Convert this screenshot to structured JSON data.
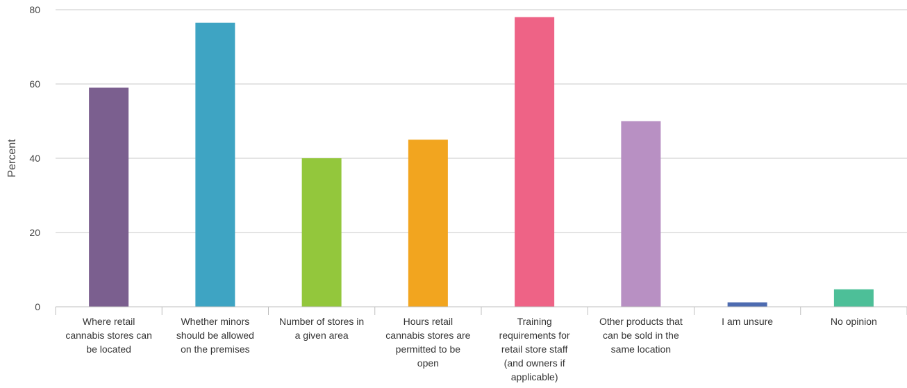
{
  "chart_data": {
    "type": "bar",
    "title": "",
    "xlabel": "",
    "ylabel": "Percent",
    "ylim": [
      0,
      80
    ],
    "yticks": [
      0,
      20,
      40,
      60,
      80
    ],
    "grid": true,
    "legend": "none",
    "categories": [
      "Where retail cannabis stores can be located",
      "Whether minors should be allowed on the premises",
      "Number of stores in a given area",
      "Hours retail cannabis stores are permitted to be open",
      "Training requirements for retail store staff (and owners if applicable)",
      "Other products that can be sold in the same location",
      "I am unsure",
      "No opinion"
    ],
    "category_lines": [
      [
        "Where retail",
        "cannabis stores can",
        "be located"
      ],
      [
        "Whether minors",
        "should be allowed",
        "on the premises"
      ],
      [
        "Number of stores in",
        "a given area"
      ],
      [
        "Hours retail",
        "cannabis stores are",
        "permitted to be",
        "open"
      ],
      [
        "Training",
        "requirements for",
        "retail store staff",
        "(and owners if",
        "applicable)"
      ],
      [
        "Other products that",
        "can be sold in the",
        "same location"
      ],
      [
        "I am unsure"
      ],
      [
        "No opinion"
      ]
    ],
    "values": [
      59,
      76.5,
      40,
      45,
      78,
      50,
      1.2,
      4.7
    ],
    "colors": [
      "#7B5F8F",
      "#3EA4C3",
      "#93C73C",
      "#F2A51F",
      "#EE6386",
      "#B890C3",
      "#4D6BB0",
      "#4DBF98"
    ]
  }
}
